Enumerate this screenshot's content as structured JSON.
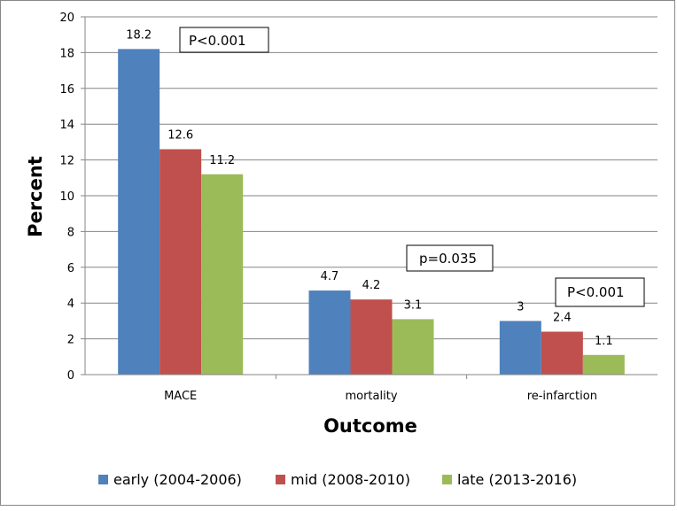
{
  "chart_data": {
    "type": "bar",
    "categories": [
      "MACE",
      "mortality",
      "re-infarction"
    ],
    "series": [
      {
        "name": "early (2004-2006)",
        "values": [
          18.2,
          4.7,
          3
        ],
        "color": "#4f81bd"
      },
      {
        "name": "mid (2008-2010)",
        "values": [
          12.6,
          4.2,
          2.4
        ],
        "color": "#c0504d"
      },
      {
        "name": "late (2013-2016)",
        "values": [
          11.2,
          3.1,
          1.1
        ],
        "color": "#9bbb59"
      }
    ],
    "data_labels": [
      [
        "18.2",
        "4.7",
        "3"
      ],
      [
        "12.6",
        "4.2",
        "2.4"
      ],
      [
        "11.2",
        "3.1",
        "1.1"
      ]
    ],
    "xlabel": "Outcome",
    "ylabel": "Percent",
    "ylim": [
      0,
      20
    ],
    "yticks": [
      0,
      2,
      4,
      6,
      8,
      10,
      12,
      14,
      16,
      18,
      20
    ],
    "grid": true,
    "legend_position": "bottom",
    "annotations": [
      {
        "text": "P<0.001",
        "category": "MACE"
      },
      {
        "text": "p=0.035",
        "category": "mortality"
      },
      {
        "text": "P<0.001",
        "category": "re-infarction"
      }
    ]
  }
}
